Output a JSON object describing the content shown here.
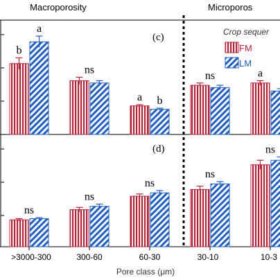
{
  "header_labels": [
    "Macroporosity",
    "Microporos"
  ],
  "legend": {
    "title": "Crop sequer",
    "entries": [
      {
        "label": "FM",
        "pattern": "vertical-stripes",
        "color": "#b3243a"
      },
      {
        "label": "LM",
        "pattern": "diagonal-stripes",
        "color": "#1f5fbf"
      }
    ]
  },
  "colors": {
    "FM": "#b3243a",
    "LM": "#1f5fbf",
    "axis": "#000000"
  },
  "chart_data": [
    {
      "type": "bar",
      "panel_label": "(c)",
      "categories": [
        ">3000-300",
        "300-60",
        "60-30",
        "30-10",
        "10-3"
      ],
      "ylim": [
        0,
        1
      ],
      "series": [
        {
          "name": "FM",
          "values": [
            0.62,
            0.47,
            0.25,
            0.43,
            0.45
          ],
          "errors": [
            0.05,
            0.03,
            0.01,
            0.02,
            0.02
          ]
        },
        {
          "name": "LM",
          "values": [
            0.81,
            0.45,
            0.22,
            0.41,
            0.38
          ],
          "errors": [
            0.05,
            0.02,
            0.01,
            0.02,
            0.02
          ]
        }
      ],
      "significance": [
        "b|a",
        "ns",
        "a|b",
        "ns",
        "a|"
      ]
    },
    {
      "type": "bar",
      "panel_label": "(d)",
      "categories": [
        ">3000-300",
        "300-60",
        "60-30",
        "30-10",
        "10-3"
      ],
      "ylim": [
        0,
        1
      ],
      "series": [
        {
          "name": "FM",
          "values": [
            0.24,
            0.33,
            0.45,
            0.51,
            0.73
          ],
          "errors": [
            0.01,
            0.02,
            0.02,
            0.03,
            0.04
          ]
        },
        {
          "name": "LM",
          "values": [
            0.25,
            0.36,
            0.48,
            0.56,
            0.77
          ],
          "errors": [
            0.01,
            0.02,
            0.02,
            0.02,
            0.03
          ]
        }
      ],
      "significance": [
        "ns",
        "ns",
        "ns",
        "ns",
        "ns"
      ]
    }
  ],
  "xaxis": {
    "tick_labels": [
      ">3000-300",
      "300-60",
      "60-30",
      "30-10",
      "10-3"
    ],
    "title": "Pore class (μm)"
  }
}
